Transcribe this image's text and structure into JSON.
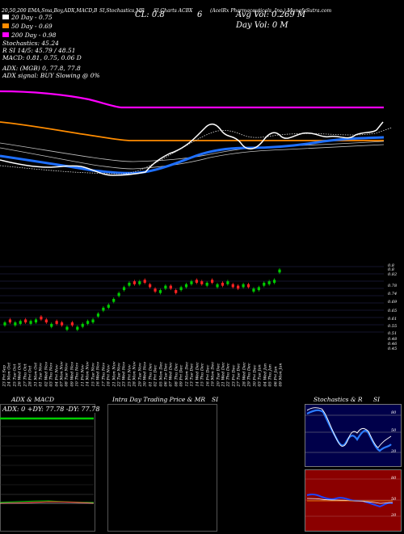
{
  "header": {
    "line1": "MunafaSutra.com",
    "title_left": "20,50,200  EMA,Sma,Boy,ADX,MACD,B",
    "title_mid": "SI,Stochastics,MR",
    "title_mid2": "SI,Charts ACBX",
    "title_right": "(AcelRx Pharmaceuticals, Inc.) MunafaSutra.com",
    "cl_label": "CL: 0.8",
    "cl_value": "6",
    "avg_vol": "Avg Vol: 0.269 M",
    "day_vol": "Day Vol: 0  M"
  },
  "legend": {
    "ma20": "20  Day - 0.75",
    "ma50": "50  Day - 0.69",
    "ma200": "200  Day - 0.98",
    "stoch": "Stochastics: 45.24",
    "rsi": "R         SI 14/5: 45.79 / 48.51",
    "macd": "MACD: 0.81, 0.75, 0.06  D",
    "adx": "ADX:                               (MGB) 0, 77.8, 77.8",
    "adx_signal": "ADX  signal:                              BUY Slowing @ 0%"
  },
  "colors": {
    "ma20": "#ffffff",
    "ma50": "#ff8c00",
    "ma200": "#ff00ff",
    "ema": "#1e6fff",
    "up": "#00cc00",
    "down": "#ff2222",
    "panel_bg_red": "#8b0000",
    "panel_bg_navy": "#00004a"
  },
  "price_axis_labels": [
    "0.8",
    "0.8",
    "0.82",
    "0.78",
    "0.74",
    "0.69",
    "0.65",
    "0.61",
    "0.55",
    "0.51",
    "0.48",
    "0.46",
    "0.45"
  ],
  "dates": [
    "23 Fri Sep",
    "24 Mon Oct",
    "25 Tue Oct",
    "26 Wed Oct",
    "27 Thu Oct",
    "28 Fri Oct",
    "31 Mon Oct",
    "01 Tue Nov",
    "02 Wed Nov",
    "03 Thu Nov",
    "04 Fri Nov",
    "07 Mon Nov",
    "08 Tue Nov",
    "09 Wed Nov",
    "10 Thu Nov",
    "11 Fri Nov",
    "14 Mon Nov",
    "15 Tue Nov",
    "16 Wed Nov",
    "17 Thu Nov",
    "18 Fri Nov",
    "21 Mon Nov",
    "22 Tue Nov",
    "23 Wed Nov",
    "25 Fri Nov",
    "28 Mon Nov",
    "29 Tue Nov",
    "30 Wed Nov",
    "01 Thu Dec",
    "02 Fri Dec",
    "05 Mon Dec",
    "06 Tue Dec",
    "07 Wed Dec",
    "08 Thu Dec",
    "09 Fri Dec",
    "12 Mon Dec",
    "13 Tue Dec",
    "14 Wed Dec",
    "15 Thu Dec",
    "16 Fri Dec",
    "19 Mon Dec",
    "20 Tue Dec",
    "21 Wed Dec",
    "22 Thu Dec",
    "23 Fri Dec",
    "27 Tue Dec",
    "28 Wed Dec",
    "29 Thu Dec",
    "30 Fri Dec",
    "03 Tue Jan",
    "04 Wed Jan",
    "05 Thu Jan",
    "06 Fri Jan",
    "09 Mon Jan"
  ],
  "panels": {
    "adx_title": "ADX  & MACD",
    "adx_values": "ADX: 0  +DY: 77.78  -DY: 77.78",
    "intra_title": "Intra  Day Trading Price  & MR",
    "intra_si": "SI",
    "stoch_title": "Stochastics & R",
    "stoch_si": "SI",
    "stoch_axis": [
      "80",
      "50",
      "20"
    ],
    "rsi_axis": [
      "80",
      "50",
      "20"
    ]
  },
  "chart_data": {
    "type": "candlestick",
    "title": "AcelRx Pharmaceuticals, Inc. (ACBX) daily candles",
    "candles_close": [
      0.5,
      0.5,
      0.5,
      0.51,
      0.5,
      0.51,
      0.52,
      0.52,
      0.5,
      0.49,
      0.49,
      0.48,
      0.47,
      0.48,
      0.47,
      0.49,
      0.51,
      0.52,
      0.56,
      0.6,
      0.62,
      0.66,
      0.7,
      0.74,
      0.77,
      0.76,
      0.78,
      0.77,
      0.74,
      0.71,
      0.72,
      0.75,
      0.73,
      0.7,
      0.74,
      0.76,
      0.78,
      0.77,
      0.76,
      0.77,
      0.77,
      0.76,
      0.75,
      0.78,
      0.74,
      0.73,
      0.76,
      0.74,
      0.73,
      0.74,
      0.77,
      0.78,
      0.79,
      0.86
    ],
    "direction": [
      "u",
      "d",
      "u",
      "u",
      "d",
      "u",
      "u",
      "d",
      "d",
      "u",
      "d",
      "d",
      "u",
      "d",
      "u",
      "u",
      "u",
      "u",
      "u",
      "u",
      "u",
      "u",
      "u",
      "u",
      "u",
      "d",
      "u",
      "d",
      "d",
      "d",
      "u",
      "u",
      "d",
      "d",
      "u",
      "u",
      "u",
      "d",
      "d",
      "u",
      "d",
      "u",
      "d",
      "u",
      "d",
      "d",
      "u",
      "d",
      "u",
      "u",
      "u",
      "u",
      "u",
      "u"
    ]
  }
}
